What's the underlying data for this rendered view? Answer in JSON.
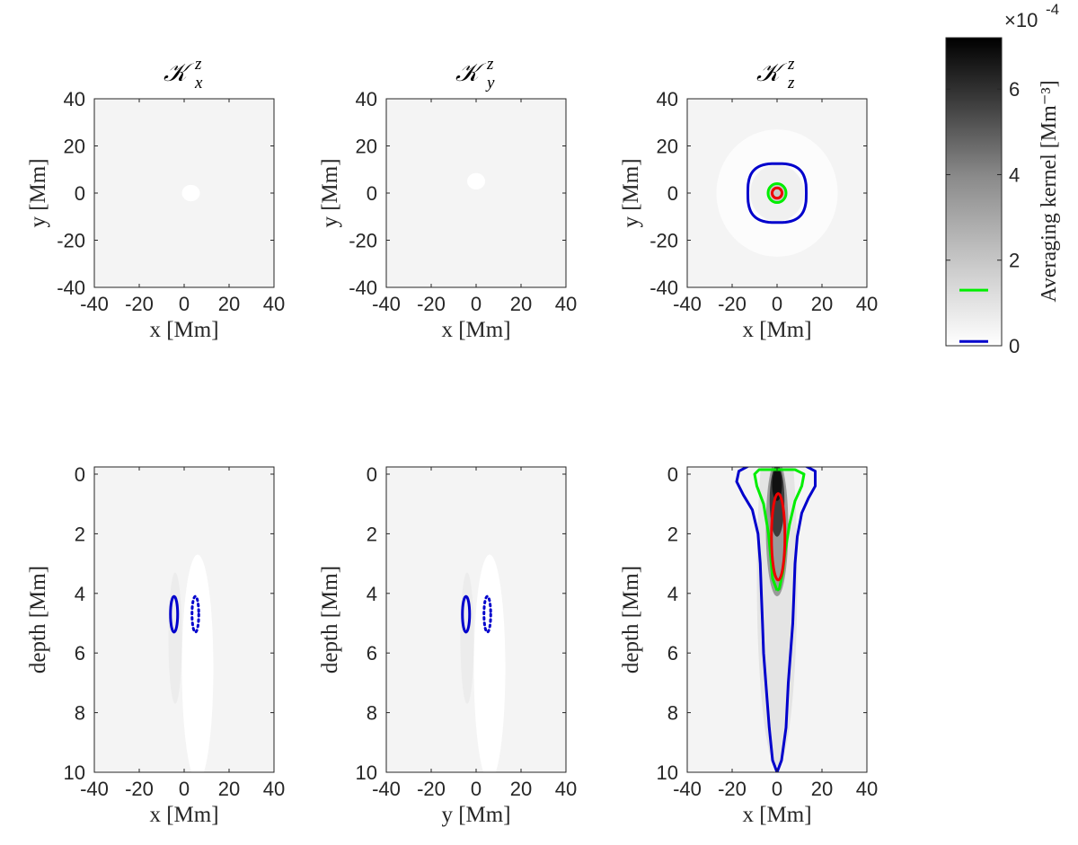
{
  "figure": {
    "colorbar": {
      "label": "Averaging kernel [Mm⁻³]",
      "multiplier": "×10",
      "exponent": "-4",
      "ticks": [
        "0",
        "2",
        "4",
        "6"
      ],
      "range": [
        0,
        7.2
      ],
      "legend_lines": [
        {
          "color": "#00ee00",
          "value": 1.3
        },
        {
          "color": "#0000cc",
          "value": 0.1
        }
      ]
    }
  },
  "chart_data": [
    {
      "type": "heatmap",
      "title": "𝒦",
      "title_sup": "z",
      "title_sub": "x",
      "xlabel": "x [Mm]",
      "ylabel": "y [Mm]",
      "xlim": [
        -40,
        40
      ],
      "ylim": [
        -40,
        40
      ],
      "xticks": [
        "-40",
        "-20",
        "0",
        "20",
        "40"
      ],
      "yticks": [
        "40",
        "20",
        "0",
        "-20",
        "-40"
      ],
      "blobs": [
        {
          "cx": 3,
          "cy": 0,
          "rx": 4,
          "ry": 3.5,
          "shade": "#ffffff"
        }
      ],
      "contours": []
    },
    {
      "type": "heatmap",
      "title": "𝒦",
      "title_sup": "z",
      "title_sub": "y",
      "xlabel": "x [Mm]",
      "ylabel": "y [Mm]",
      "xlim": [
        -40,
        40
      ],
      "ylim": [
        -40,
        40
      ],
      "xticks": [
        "-40",
        "-20",
        "0",
        "20",
        "40"
      ],
      "yticks": [
        "40",
        "20",
        "0",
        "-20",
        "-40"
      ],
      "blobs": [
        {
          "cx": 0,
          "cy": 5,
          "rx": 4,
          "ry": 3.5,
          "shade": "#ffffff"
        }
      ],
      "contours": []
    },
    {
      "type": "heatmap",
      "title": "𝒦",
      "title_sup": "z",
      "title_sub": "z",
      "xlabel": "x [Mm]",
      "ylabel": "y [Mm]",
      "xlim": [
        -40,
        40
      ],
      "ylim": [
        -40,
        40
      ],
      "xticks": [
        "-40",
        "-20",
        "0",
        "20",
        "40"
      ],
      "yticks": [
        "40",
        "20",
        "0",
        "-20",
        "-40"
      ],
      "blobs": [
        {
          "cx": 0,
          "cy": 0,
          "rx": 27,
          "ry": 27,
          "shade": "#fcfcfc"
        },
        {
          "cx": 0,
          "cy": 0,
          "rx": 12,
          "ry": 12,
          "shade": "#f0f0f0"
        },
        {
          "cx": 0,
          "cy": 0,
          "rx": 4,
          "ry": 4,
          "shade": "#c8c8c8"
        }
      ],
      "contours": [
        {
          "color": "#0000cc",
          "style": "solid",
          "shape": "superellipse",
          "cx": 0,
          "cy": 0,
          "rx": 13,
          "ry": 12.5
        },
        {
          "color": "#00ee00",
          "style": "solid",
          "shape": "ellipse",
          "cx": 0,
          "cy": 0,
          "rx": 4,
          "ry": 4
        },
        {
          "color": "#ee0000",
          "style": "solid",
          "shape": "ellipse",
          "cx": 0,
          "cy": 0,
          "rx": 2.2,
          "ry": 2.2
        }
      ]
    },
    {
      "type": "heatmap",
      "title": "",
      "title_sup": "",
      "title_sub": "",
      "xlabel": "x [Mm]",
      "ylabel": "depth [Mm]",
      "xlim": [
        -40,
        40
      ],
      "ylim": [
        0,
        10
      ],
      "xticks": [
        "-40",
        "-20",
        "0",
        "20",
        "40"
      ],
      "yticks": [
        "0",
        "2",
        "4",
        "6",
        "8",
        "10"
      ],
      "blobs": [
        {
          "cx": 6,
          "cy": 6.5,
          "rx": 7,
          "ry": 3.8,
          "shade": "#ffffff"
        },
        {
          "cx": -4,
          "cy": 5.5,
          "rx": 3,
          "ry": 2.2,
          "shade": "#ececec"
        }
      ],
      "contours": [
        {
          "color": "#0000cc",
          "style": "solid",
          "shape": "ellipse",
          "cx": -4.5,
          "cy": 4.7,
          "rx": 1.6,
          "ry": 0.6
        },
        {
          "color": "#0000cc",
          "style": "dotted",
          "shape": "ellipse",
          "cx": 5,
          "cy": 4.7,
          "rx": 1.5,
          "ry": 0.6
        }
      ]
    },
    {
      "type": "heatmap",
      "title": "",
      "title_sup": "",
      "title_sub": "",
      "xlabel": "y [Mm]",
      "ylabel": "depth [Mm]",
      "xlim": [
        -40,
        40
      ],
      "ylim": [
        0,
        10
      ],
      "xticks": [
        "-40",
        "-20",
        "0",
        "20",
        "40"
      ],
      "yticks": [
        "0",
        "2",
        "4",
        "6",
        "8",
        "10"
      ],
      "blobs": [
        {
          "cx": 6,
          "cy": 6.5,
          "rx": 7,
          "ry": 3.8,
          "shade": "#ffffff"
        },
        {
          "cx": -4,
          "cy": 5.5,
          "rx": 3,
          "ry": 2.2,
          "shade": "#ececec"
        }
      ],
      "contours": [
        {
          "color": "#0000cc",
          "style": "solid",
          "shape": "ellipse",
          "cx": -4.5,
          "cy": 4.7,
          "rx": 1.6,
          "ry": 0.6
        },
        {
          "color": "#0000cc",
          "style": "dotted",
          "shape": "ellipse",
          "cx": 5,
          "cy": 4.7,
          "rx": 1.5,
          "ry": 0.6
        }
      ]
    },
    {
      "type": "heatmap",
      "title": "",
      "title_sup": "",
      "title_sub": "",
      "xlabel": "x [Mm]",
      "ylabel": "depth [Mm]",
      "xlim": [
        -40,
        40
      ],
      "ylim": [
        0,
        10
      ],
      "xticks": [
        "-40",
        "-20",
        "0",
        "20",
        "40"
      ],
      "yticks": [
        "0",
        "2",
        "4",
        "6",
        "8",
        "10"
      ],
      "blobs": [
        {
          "cx": 0,
          "cy": 3.5,
          "rx": 9,
          "ry": 6.3,
          "shade": "#e4e4e4"
        },
        {
          "cx": 0,
          "cy": 1.8,
          "rx": 5,
          "ry": 2.3,
          "shade": "#9a9a9a"
        },
        {
          "cx": 0,
          "cy": 0.9,
          "rx": 3.3,
          "ry": 1.2,
          "shade": "#3c3c3c"
        },
        {
          "cx": 0,
          "cy": 0.35,
          "rx": 2.2,
          "ry": 0.55,
          "shade": "#111111"
        }
      ],
      "contours": [
        {
          "color": "#0000cc",
          "style": "solid",
          "shape": "polyline",
          "points": [
            [
              0,
              10
            ],
            [
              -2,
              9.6
            ],
            [
              -3.5,
              8.5
            ],
            [
              -5,
              7
            ],
            [
              -6,
              6
            ],
            [
              -6.5,
              5
            ],
            [
              -7,
              4
            ],
            [
              -7.5,
              3
            ],
            [
              -8.5,
              2
            ],
            [
              -11,
              1.2
            ],
            [
              -15,
              0.7
            ],
            [
              -18,
              0.25
            ],
            [
              -17,
              -0.1
            ],
            [
              -12,
              -0.3
            ],
            [
              0,
              -0.3
            ],
            [
              12,
              -0.3
            ],
            [
              17,
              -0.1
            ],
            [
              17,
              0.4
            ],
            [
              14,
              0.8
            ],
            [
              11,
              1.3
            ],
            [
              9,
              2.1
            ],
            [
              8,
              3
            ],
            [
              7.5,
              4
            ],
            [
              7,
              5
            ],
            [
              6,
              6
            ],
            [
              5,
              7
            ],
            [
              4,
              8.5
            ],
            [
              2,
              9.6
            ],
            [
              0,
              10
            ]
          ]
        },
        {
          "color": "#00ee00",
          "style": "solid",
          "shape": "polyline",
          "points": [
            [
              0,
              3.9
            ],
            [
              -2,
              3.5
            ],
            [
              -2.8,
              2.8
            ],
            [
              -3.8,
              2
            ],
            [
              -6,
              1
            ],
            [
              -9,
              0.4
            ],
            [
              -10,
              0
            ],
            [
              -8,
              -0.15
            ],
            [
              0,
              -0.15
            ],
            [
              8,
              -0.15
            ],
            [
              12,
              0
            ],
            [
              11,
              0.4
            ],
            [
              8,
              0.9
            ],
            [
              5.5,
              1.7
            ],
            [
              3.6,
              2.6
            ],
            [
              2.5,
              3.3
            ],
            [
              1,
              3.85
            ],
            [
              0,
              3.9
            ]
          ]
        },
        {
          "color": "#ee0000",
          "style": "solid",
          "shape": "ellipse",
          "cx": 0.5,
          "cy": 2.1,
          "rx": 3,
          "ry": 1.45
        }
      ]
    }
  ]
}
